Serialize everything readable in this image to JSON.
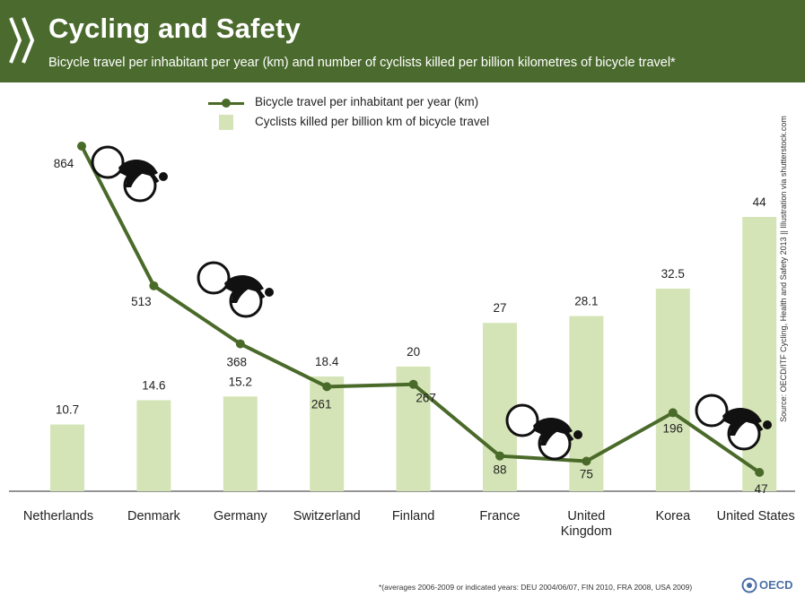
{
  "header": {
    "title": "Cycling and Safety",
    "subtitle": "Bicycle travel per inhabitant per year (km) and number of cyclists killed per billion kilometres of bicycle travel*"
  },
  "legend": {
    "line_label": "Bicycle travel per inhabitant per year (km)",
    "bar_label": "Cyclists killed per billion km of bicycle travel"
  },
  "source": "Source: OECD/ITF Cycling, Health and Safety 2013 || Illustration via shutterstock.com",
  "footnote": "*(averages 2006-2009 or indicated years: DEU 2004/06/07, FIN 2010, FRA 2008, USA 2009)",
  "logo_text": "OECD",
  "colors": {
    "header_bg": "#4b6b2e",
    "bar": "#d5e4b6",
    "line": "#4a6a2a",
    "logo": "#4a6fa5"
  },
  "icons": [
    "cyclist-icon"
  ],
  "chart_data": {
    "type": "bar",
    "categories": [
      "Netherlands",
      "Denmark",
      "Germany",
      "Switzerland",
      "Finland",
      "France",
      "United Kingdom",
      "Korea",
      "United States"
    ],
    "category_lines": [
      [
        "Netherlands"
      ],
      [
        "Denmark"
      ],
      [
        "Germany"
      ],
      [
        "Switzerland"
      ],
      [
        "Finland"
      ],
      [
        "France"
      ],
      [
        "United",
        "Kingdom"
      ],
      [
        "Korea"
      ],
      [
        "United States"
      ]
    ],
    "series": [
      {
        "name": "Cyclists killed per billion km of bicycle travel",
        "type": "bar",
        "values": [
          10.7,
          14.6,
          15.2,
          18.4,
          20,
          27,
          28.1,
          32.5,
          44
        ],
        "labels": [
          "10.7",
          "14.6",
          "15.2",
          "18.4",
          "20",
          "27",
          "28.1",
          "32.5",
          "44"
        ]
      },
      {
        "name": "Bicycle travel per inhabitant per year (km)",
        "type": "line",
        "values": [
          864,
          513,
          368,
          261,
          267,
          88,
          75,
          196,
          47
        ],
        "labels": [
          "864",
          "513",
          "368",
          "261",
          "267",
          "88",
          "75",
          "196",
          "47"
        ]
      }
    ],
    "cyclist_icons_at": [
      0,
      1,
      5,
      7
    ],
    "legend_position": "top"
  }
}
